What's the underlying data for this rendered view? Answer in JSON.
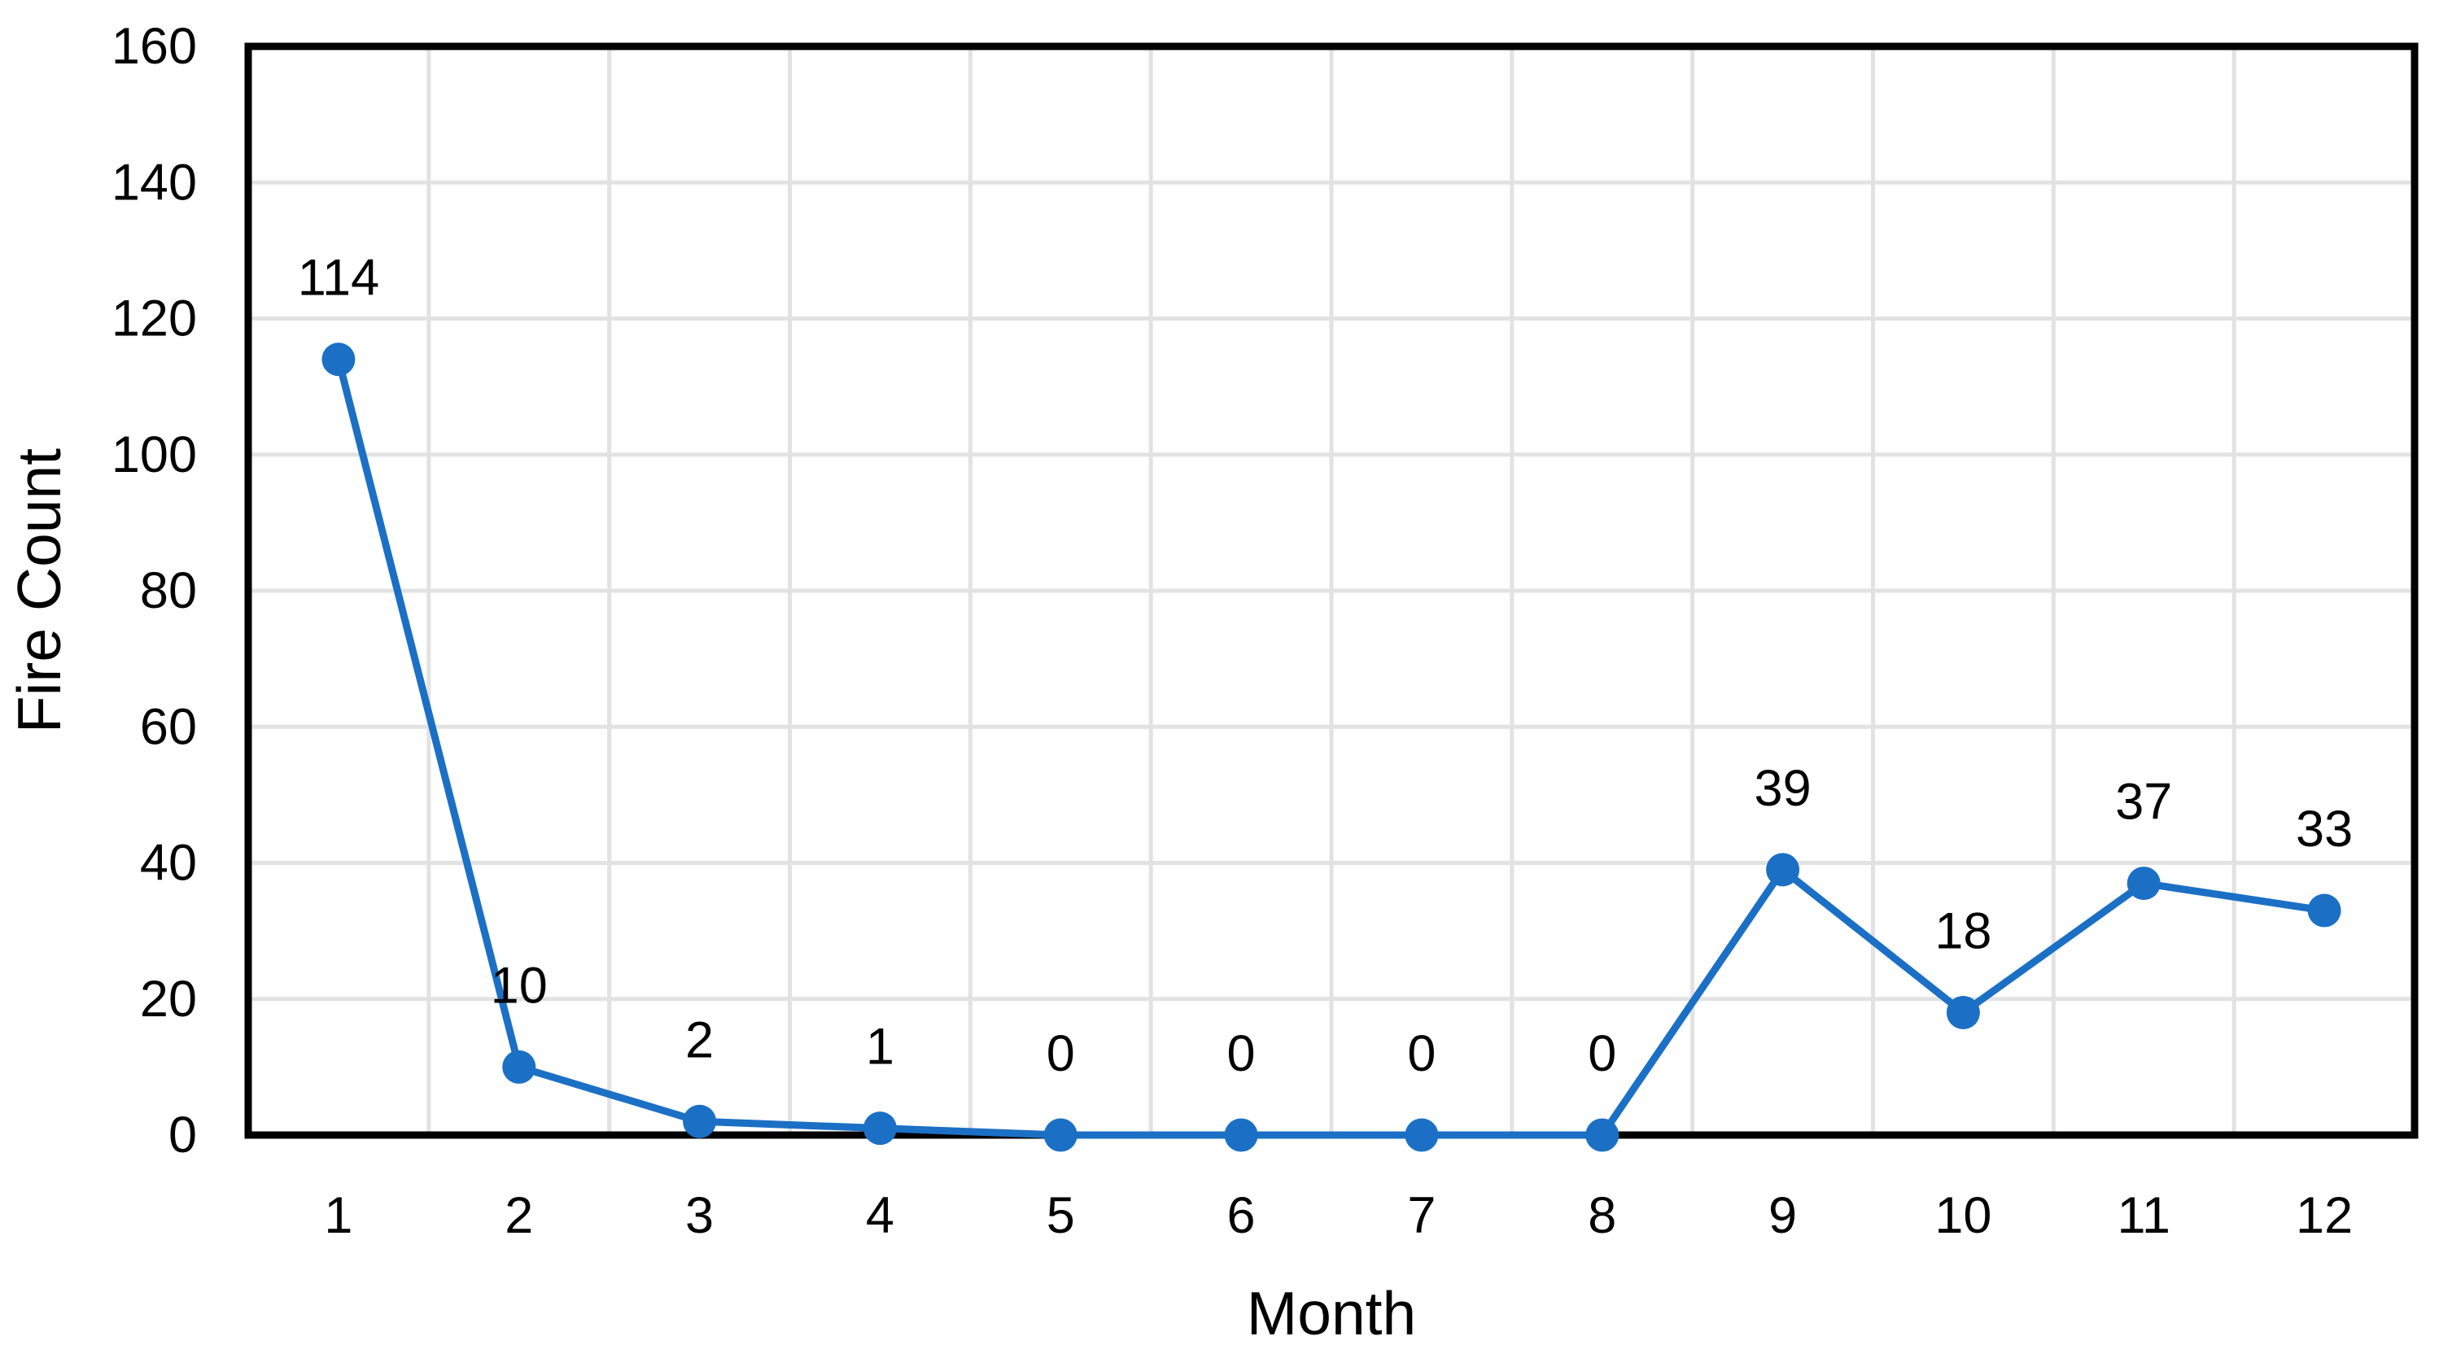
{
  "chart_data": {
    "type": "line",
    "title": "",
    "xlabel": "Month",
    "ylabel": "Fire Count",
    "categories": [
      "1",
      "2",
      "3",
      "4",
      "5",
      "6",
      "7",
      "8",
      "9",
      "10",
      "11",
      "12"
    ],
    "series": [
      {
        "name": "Fire Count",
        "values": [
          114,
          10,
          2,
          1,
          0,
          0,
          0,
          0,
          39,
          18,
          37,
          33
        ]
      }
    ],
    "data_labels": [
      "114",
      "10",
      "2",
      "1",
      "0",
      "0",
      "0",
      "0",
      "39",
      "18",
      "37",
      "33"
    ],
    "yticks": [
      0,
      20,
      40,
      60,
      80,
      100,
      120,
      140,
      160
    ],
    "ylim": [
      0,
      160
    ],
    "grid": true,
    "legend": false,
    "colors": {
      "line": "#1B70C5",
      "marker": "#1B70C5",
      "gridline": "#E2E2E2",
      "plot_border": "#000000",
      "text": "#000000",
      "background": "#FFFFFF"
    }
  }
}
